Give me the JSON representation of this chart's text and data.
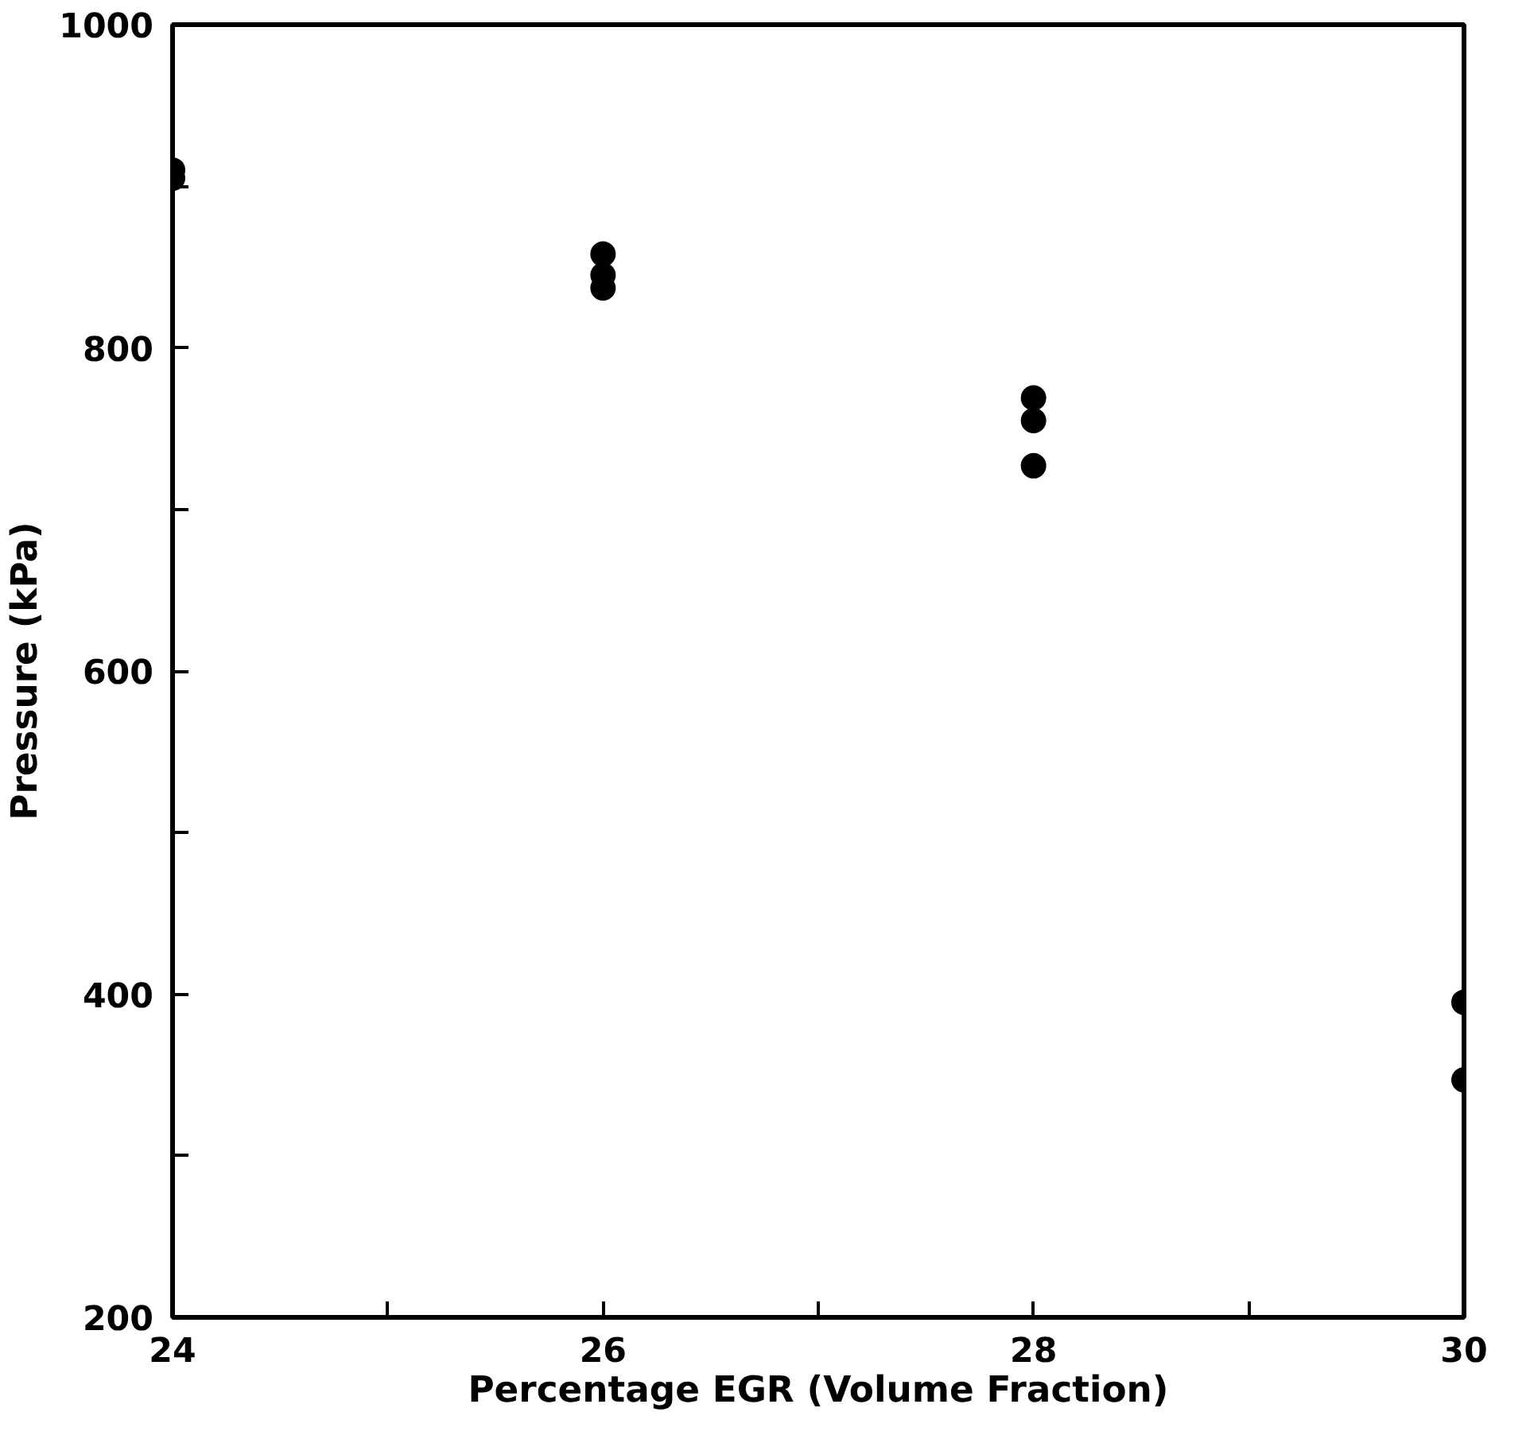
{
  "chart_data": {
    "type": "scatter",
    "xlabel": "Percentage EGR (Volume Fraction)",
    "ylabel": "Pressure (kPa)",
    "x": [
      24,
      24,
      26,
      26,
      26,
      28,
      28,
      28,
      30,
      30
    ],
    "series": [
      {
        "color": "#000000",
        "values": [
          910,
          905,
          858,
          845,
          837,
          769,
          755,
          727,
          395,
          347
        ]
      }
    ],
    "xlim": [
      24,
      30
    ],
    "ylim": [
      200,
      1000
    ],
    "xticks": [
      24,
      {
        "value": 25,
        "label": null
      },
      26,
      {
        "value": 27,
        "label": null
      },
      28,
      {
        "value": 29,
        "label": null
      },
      30
    ],
    "yticks": [
      200,
      {
        "value": 300,
        "label": null
      },
      400,
      {
        "value": 500,
        "label": null
      },
      600,
      {
        "value": 700,
        "label": null
      },
      800,
      {
        "value": 900,
        "label": null
      },
      1000
    ],
    "grid": false,
    "marker": "circle"
  }
}
